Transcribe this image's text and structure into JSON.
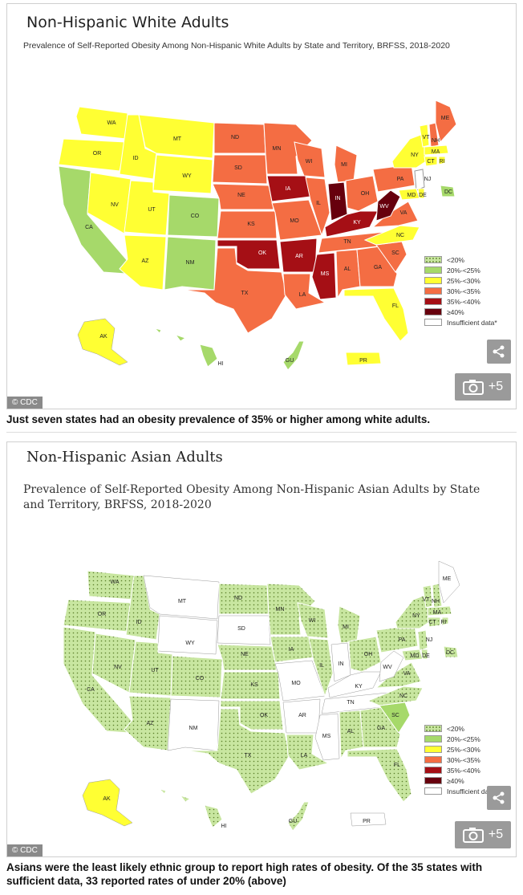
{
  "colors": {
    "lt20": "#c8e6a0",
    "r20_25": "#a6d96a",
    "r25_30": "#ffff33",
    "r30_35": "#f46d43",
    "r35_40": "#a50f15",
    "ge40": "#67000d",
    "insufficient": "#ffffff",
    "white_map": {
      "base": "#f46d43"
    },
    "asian_map": {
      "base": "#c8e6a0"
    }
  },
  "figure1": {
    "title": "Non-Hispanic White Adults",
    "subtitle": "Prevalence of Self-Reported Obesity Among Non-Hispanic White Adults by State and Territory, BRFSS, 2018-2020",
    "credit": "© CDC",
    "gallery_count": "+5",
    "legend": [
      "<20%",
      "20%-<25%",
      "25%-<30%",
      "30%-<35%",
      "35%-<40%",
      "≥40%",
      "Insufficient data*"
    ],
    "state_labels": [
      {
        "t": "WA"
      },
      {
        "t": "OR"
      },
      {
        "t": "CA"
      },
      {
        "t": "ID"
      },
      {
        "t": "NV"
      },
      {
        "t": "MT"
      },
      {
        "t": "WY"
      },
      {
        "t": "UT"
      },
      {
        "t": "AZ"
      },
      {
        "t": "CO"
      },
      {
        "t": "NM"
      },
      {
        "t": "ND"
      },
      {
        "t": "SD"
      },
      {
        "t": "NE"
      },
      {
        "t": "KS"
      },
      {
        "t": "OK"
      },
      {
        "t": "TX"
      },
      {
        "t": "MN"
      },
      {
        "t": "IA"
      },
      {
        "t": "MO"
      },
      {
        "t": "AR"
      },
      {
        "t": "LA"
      },
      {
        "t": "WI"
      },
      {
        "t": "IL"
      },
      {
        "t": "MI"
      },
      {
        "t": "IN"
      },
      {
        "t": "OH"
      },
      {
        "t": "KY"
      },
      {
        "t": "TN"
      },
      {
        "t": "MS"
      },
      {
        "t": "AL"
      },
      {
        "t": "GA"
      },
      {
        "t": "FL"
      },
      {
        "t": "SC"
      },
      {
        "t": "NC"
      },
      {
        "t": "VA"
      },
      {
        "t": "WV"
      },
      {
        "t": "PA"
      },
      {
        "t": "NY"
      },
      {
        "t": "VT"
      },
      {
        "t": "NH"
      },
      {
        "t": "ME"
      },
      {
        "t": "MA"
      },
      {
        "t": "CT"
      },
      {
        "t": "RI"
      },
      {
        "t": "NJ"
      },
      {
        "t": "DE"
      },
      {
        "t": "MD"
      },
      {
        "t": "DC"
      },
      {
        "t": "AK"
      },
      {
        "t": "HI"
      },
      {
        "t": "GU"
      },
      {
        "t": "PR"
      }
    ]
  },
  "figure2": {
    "title": "Non-Hispanic Asian Adults",
    "subtitle": "Prevalence of Self-Reported Obesity Among Non-Hispanic Asian Adults by State and Territory, BRFSS, 2018-2020",
    "credit": "© CDC",
    "gallery_count": "+5",
    "legend": [
      "<20%",
      "20%-<25%",
      "25%-<30%",
      "30%-<35%",
      "35%-<40%",
      "≥40%",
      "Insufficient data*"
    ]
  },
  "captions": {
    "c1": "Just seven states had an obesity prevalence of 35% or higher among white adults.",
    "c2": "Asians were the least likely ethnic group to report high rates of obesity. Of the 35 states with sufficient data, 33 reported rates of under 20% (above)"
  }
}
